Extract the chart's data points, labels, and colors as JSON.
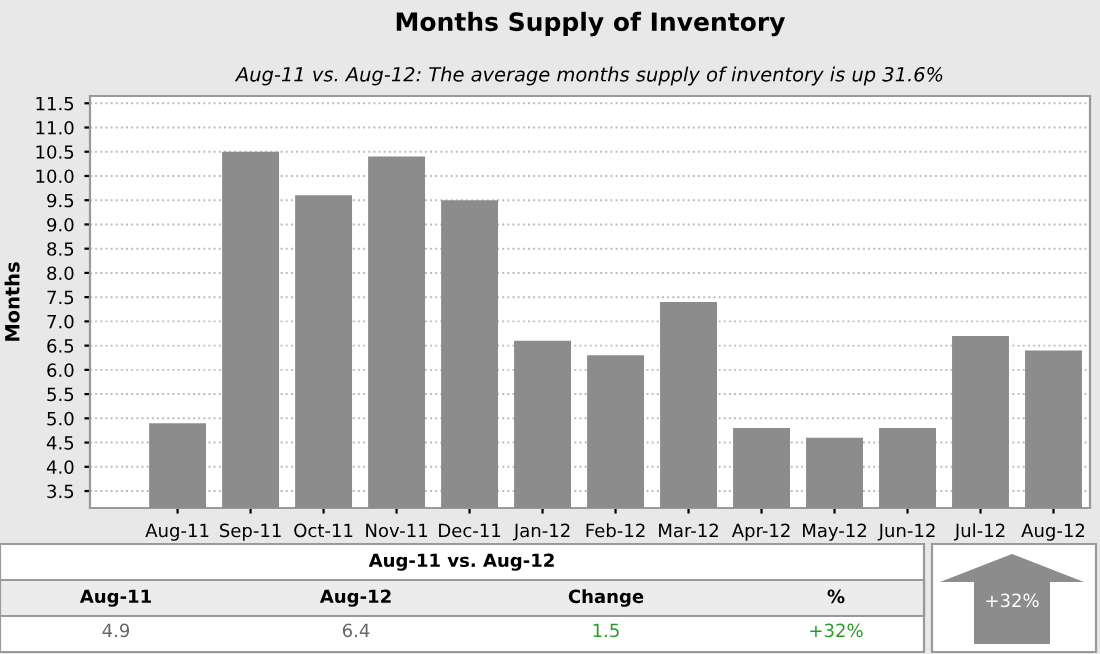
{
  "chart_data": {
    "type": "bar",
    "title": "Months Supply of Inventory",
    "subtitle": "Aug-11 vs. Aug-12: The average months supply of inventory is up 31.6%",
    "ylabel": "Months",
    "categories": [
      "Aug-11",
      "Sep-11",
      "Oct-11",
      "Nov-11",
      "Dec-11",
      "Jan-12",
      "Feb-12",
      "Mar-12",
      "Apr-12",
      "May-12",
      "Jun-12",
      "Jul-12",
      "Aug-12"
    ],
    "values": [
      4.9,
      10.5,
      9.6,
      10.4,
      9.5,
      6.6,
      6.3,
      7.4,
      4.8,
      4.6,
      4.8,
      6.7,
      6.4
    ],
    "color": "#8c8c8c",
    "ylim": [
      3.15,
      11.65
    ],
    "yticks": [
      3.5,
      {
        "value": 4,
        "label": "4.0"
      },
      4.5,
      {
        "value": 5,
        "label": "5.0"
      },
      5.5,
      {
        "value": 6,
        "label": "6.0"
      },
      6.5,
      {
        "value": 7,
        "label": "7.0"
      },
      7.5,
      {
        "value": 8,
        "label": "8.0"
      },
      8.5,
      {
        "value": 9,
        "label": "9.0"
      },
      9.5,
      {
        "value": 10,
        "label": "10.0"
      },
      10.5,
      {
        "value": 11,
        "label": "11.0"
      },
      11.5
    ],
    "grid": "y",
    "annotations": [
      "Aug-11 vs. Aug-12",
      "Aug-11",
      "Aug-12",
      "Change",
      "%",
      "4.9",
      "6.4",
      "1.5",
      "+32%",
      "+32%"
    ]
  }
}
